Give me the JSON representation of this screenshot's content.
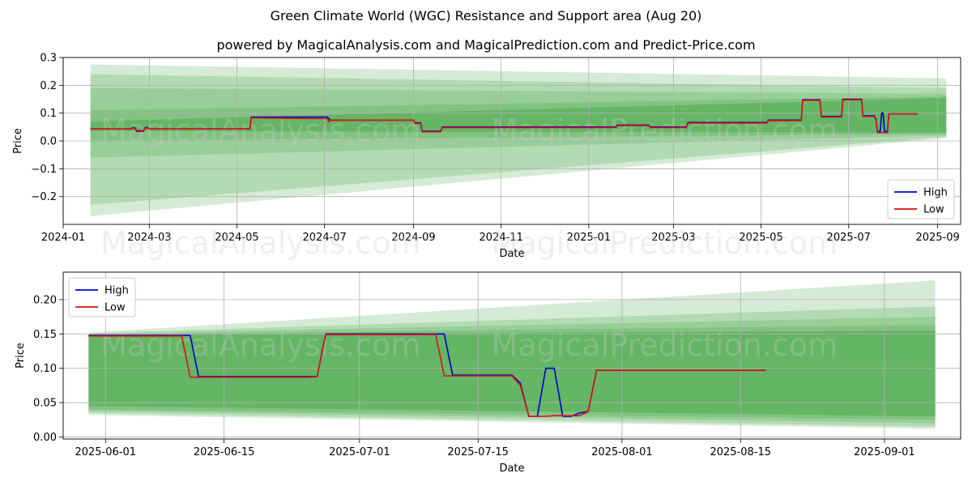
{
  "title": "Green Climate World (WGC) Resistance and Support area (Aug 20)",
  "subtitle": "powered by MagicalAnalysis.com and MagicalPrediction.com and Predict-Price.com",
  "watermarks": [
    "MagicalAnalysis.com",
    "MagicalPrediction.com"
  ],
  "colors": {
    "high": "#0000cc",
    "low": "#dd1111",
    "band": "#2e9a2e",
    "grid": "#b0b0b0"
  },
  "chart_data": [
    {
      "type": "line",
      "xlabel": "Date",
      "ylabel": "Price",
      "xlim": [
        "2024-01-01",
        "2025-09-17"
      ],
      "ylim": [
        -0.3,
        0.3
      ],
      "x_ticks": [
        "2024-01",
        "2024-03",
        "2024-05",
        "2024-07",
        "2024-09",
        "2024-11",
        "2025-01",
        "2025-03",
        "2025-05",
        "2025-07",
        "2025-09"
      ],
      "y_ticks": [
        "0.3",
        "0.2",
        "0.1",
        "0.0",
        "−0.1",
        "−0.2"
      ],
      "grid": true,
      "legend": "bottom-right",
      "bands": [
        {
          "start": "2024-01-20",
          "end": "2025-09-07",
          "top": [
            0.07,
            0.155
          ],
          "bottom": [
            0.035,
            0.03
          ]
        },
        {
          "start": "2024-01-20",
          "end": "2025-09-07",
          "top": [
            0.11,
            0.16
          ],
          "bottom": [
            0.0,
            0.025
          ]
        },
        {
          "start": "2024-01-20",
          "end": "2025-09-07",
          "top": [
            0.19,
            0.17
          ],
          "bottom": [
            -0.06,
            0.02
          ]
        },
        {
          "start": "2024-01-20",
          "end": "2025-09-07",
          "top": [
            0.24,
            0.19
          ],
          "bottom": [
            -0.23,
            0.015
          ]
        },
        {
          "start": "2024-01-20",
          "end": "2025-09-07",
          "top": [
            0.275,
            0.225
          ],
          "bottom": [
            -0.27,
            0.01
          ]
        }
      ],
      "series": [
        {
          "name": "High",
          "points": [
            [
              "2024-01-20",
              0.043
            ],
            [
              "2024-02-17",
              0.043
            ],
            [
              "2024-02-18",
              0.047
            ],
            [
              "2024-02-20",
              0.047
            ],
            [
              "2024-02-21",
              0.036
            ],
            [
              "2024-02-26",
              0.036
            ],
            [
              "2024-02-27",
              0.048
            ],
            [
              "2024-02-29",
              0.048
            ],
            [
              "2024-03-01",
              0.043
            ],
            [
              "2024-05-10",
              0.043
            ],
            [
              "2024-05-11",
              0.086
            ],
            [
              "2024-07-03",
              0.086
            ],
            [
              "2024-07-05",
              0.075
            ],
            [
              "2024-09-01",
              0.075
            ],
            [
              "2024-09-02",
              0.065
            ],
            [
              "2024-09-06",
              0.065
            ],
            [
              "2024-09-07",
              0.035
            ],
            [
              "2024-09-20",
              0.035
            ],
            [
              "2024-09-21",
              0.05
            ],
            [
              "2025-01-20",
              0.05
            ],
            [
              "2025-01-21",
              0.057
            ],
            [
              "2025-02-12",
              0.057
            ],
            [
              "2025-02-13",
              0.05
            ],
            [
              "2025-03-10",
              0.05
            ],
            [
              "2025-03-11",
              0.066
            ],
            [
              "2025-05-05",
              0.066
            ],
            [
              "2025-05-06",
              0.075
            ],
            [
              "2025-05-29",
              0.075
            ],
            [
              "2025-05-30",
              0.148
            ],
            [
              "2025-06-11",
              0.148
            ],
            [
              "2025-06-12",
              0.088
            ],
            [
              "2025-06-26",
              0.088
            ],
            [
              "2025-06-27",
              0.15
            ],
            [
              "2025-07-10",
              0.15
            ],
            [
              "2025-07-11",
              0.09
            ],
            [
              "2025-07-19",
              0.09
            ],
            [
              "2025-07-20",
              0.078
            ],
            [
              "2025-07-21",
              0.035
            ],
            [
              "2025-07-23",
              0.035
            ],
            [
              "2025-07-24",
              0.1
            ],
            [
              "2025-07-25",
              0.1
            ],
            [
              "2025-07-26",
              0.035
            ],
            [
              "2025-07-28",
              0.035
            ],
            [
              "2025-07-29",
              0.097
            ],
            [
              "2025-08-18",
              0.097
            ]
          ]
        },
        {
          "name": "Low",
          "points": [
            [
              "2024-01-20",
              0.043
            ],
            [
              "2024-02-17",
              0.043
            ],
            [
              "2024-02-18",
              0.045
            ],
            [
              "2024-02-20",
              0.045
            ],
            [
              "2024-02-21",
              0.034
            ],
            [
              "2024-02-26",
              0.034
            ],
            [
              "2024-02-27",
              0.046
            ],
            [
              "2024-02-29",
              0.046
            ],
            [
              "2024-03-01",
              0.043
            ],
            [
              "2024-05-10",
              0.043
            ],
            [
              "2024-05-11",
              0.083
            ],
            [
              "2024-07-03",
              0.08
            ],
            [
              "2024-07-04",
              0.068
            ],
            [
              "2024-07-05",
              0.075
            ],
            [
              "2024-09-01",
              0.075
            ],
            [
              "2024-09-02",
              0.063
            ],
            [
              "2024-09-06",
              0.063
            ],
            [
              "2024-09-07",
              0.033
            ],
            [
              "2024-09-20",
              0.033
            ],
            [
              "2024-09-21",
              0.048
            ],
            [
              "2025-01-20",
              0.048
            ],
            [
              "2025-01-21",
              0.055
            ],
            [
              "2025-02-12",
              0.055
            ],
            [
              "2025-02-13",
              0.048
            ],
            [
              "2025-03-10",
              0.048
            ],
            [
              "2025-03-11",
              0.064
            ],
            [
              "2025-05-05",
              0.064
            ],
            [
              "2025-05-06",
              0.073
            ],
            [
              "2025-05-29",
              0.073
            ],
            [
              "2025-05-30",
              0.146
            ],
            [
              "2025-06-11",
              0.146
            ],
            [
              "2025-06-12",
              0.086
            ],
            [
              "2025-06-26",
              0.086
            ],
            [
              "2025-06-27",
              0.148
            ],
            [
              "2025-07-10",
              0.148
            ],
            [
              "2025-07-11",
              0.088
            ],
            [
              "2025-07-19",
              0.088
            ],
            [
              "2025-07-20",
              0.075
            ],
            [
              "2025-07-21",
              0.03
            ],
            [
              "2025-07-28",
              0.03
            ],
            [
              "2025-07-29",
              0.097
            ],
            [
              "2025-08-18",
              0.097
            ]
          ]
        }
      ]
    },
    {
      "type": "line",
      "xlabel": "Date",
      "ylabel": "Price",
      "xlim": [
        "2025-05-27",
        "2025-09-10"
      ],
      "ylim": [
        -0.003,
        0.24
      ],
      "x_ticks": [
        "2025-06-01",
        "2025-06-15",
        "2025-07-01",
        "2025-07-15",
        "2025-08-01",
        "2025-08-15",
        "2025-09-01"
      ],
      "y_ticks": [
        "0.20",
        "0.15",
        "0.10",
        "0.05",
        "0.00"
      ],
      "grid": true,
      "legend": "top-left",
      "bands": [
        {
          "start": "2025-05-30",
          "end": "2025-09-07",
          "top": [
            0.148,
            0.155
          ],
          "bottom": [
            0.045,
            0.03
          ]
        },
        {
          "start": "2025-05-30",
          "end": "2025-09-07",
          "top": [
            0.149,
            0.163
          ],
          "bottom": [
            0.04,
            0.025
          ]
        },
        {
          "start": "2025-05-30",
          "end": "2025-09-07",
          "top": [
            0.15,
            0.175
          ],
          "bottom": [
            0.038,
            0.02
          ]
        },
        {
          "start": "2025-05-30",
          "end": "2025-09-07",
          "top": [
            0.151,
            0.19
          ],
          "bottom": [
            0.035,
            0.015
          ]
        },
        {
          "start": "2025-05-30",
          "end": "2025-09-07",
          "top": [
            0.152,
            0.228
          ],
          "bottom": [
            0.032,
            0.012
          ]
        }
      ],
      "series": [
        {
          "name": "High",
          "points": [
            [
              "2025-05-30",
              0.148
            ],
            [
              "2025-06-11",
              0.148
            ],
            [
              "2025-06-12",
              0.088
            ],
            [
              "2025-06-26",
              0.088
            ],
            [
              "2025-06-27",
              0.15
            ],
            [
              "2025-07-11",
              0.15
            ],
            [
              "2025-07-12",
              0.09
            ],
            [
              "2025-07-19",
              0.09
            ],
            [
              "2025-07-20",
              0.078
            ],
            [
              "2025-07-21",
              0.03
            ],
            [
              "2025-07-22",
              0.03
            ],
            [
              "2025-07-23",
              0.1
            ],
            [
              "2025-07-24",
              0.1
            ],
            [
              "2025-07-25",
              0.03
            ],
            [
              "2025-07-26",
              0.03
            ],
            [
              "2025-07-27",
              0.035
            ],
            [
              "2025-07-28",
              0.037
            ],
            [
              "2025-07-29",
              0.097
            ],
            [
              "2025-08-18",
              0.097
            ]
          ]
        },
        {
          "name": "Low",
          "points": [
            [
              "2025-05-30",
              0.147
            ],
            [
              "2025-06-10",
              0.147
            ],
            [
              "2025-06-11",
              0.087
            ],
            [
              "2025-06-25",
              0.087
            ],
            [
              "2025-06-26",
              0.088
            ],
            [
              "2025-06-27",
              0.149
            ],
            [
              "2025-07-10",
              0.149
            ],
            [
              "2025-07-11",
              0.089
            ],
            [
              "2025-07-19",
              0.089
            ],
            [
              "2025-07-20",
              0.075
            ],
            [
              "2025-07-21",
              0.03
            ],
            [
              "2025-07-23",
              0.03
            ],
            [
              "2025-07-24",
              0.031
            ],
            [
              "2025-07-27",
              0.031
            ],
            [
              "2025-07-28",
              0.037
            ],
            [
              "2025-07-29",
              0.097
            ],
            [
              "2025-08-18",
              0.097
            ]
          ]
        }
      ]
    }
  ]
}
